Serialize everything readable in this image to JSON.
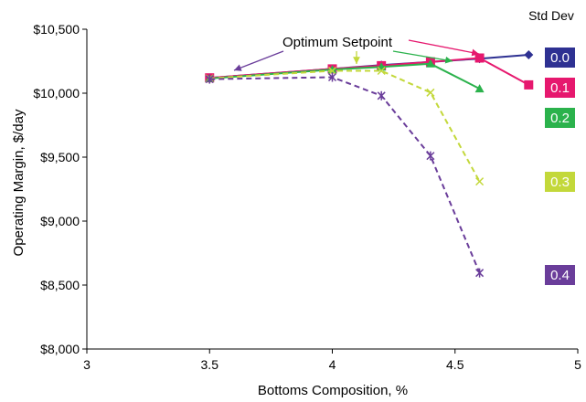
{
  "chart_data": {
    "type": "line",
    "xlabel": "Bottoms Composition, %",
    "ylabel": "Operating Margin, $/day",
    "xlim": [
      3,
      5
    ],
    "ylim": [
      8000,
      10500
    ],
    "x_ticks": [
      "3",
      "3.5",
      "4",
      "4.5",
      "5"
    ],
    "y_ticks": [
      "$8,000",
      "$8,500",
      "$9,000",
      "$9,500",
      "$10,000",
      "$10,500"
    ],
    "grid": false,
    "legend_title": "Std Dev",
    "legend_placement": "right",
    "annotation": "Optimum Setpoint",
    "series": [
      {
        "name": "0.0",
        "color": "#2e3192",
        "marker": "diamond",
        "dash": false,
        "x": [
          3.5,
          4.0,
          4.2,
          4.4,
          4.6,
          4.8
        ],
        "y": [
          10120,
          10190,
          10220,
          10245,
          10270,
          10300
        ]
      },
      {
        "name": "0.1",
        "color": "#e6186e",
        "marker": "square",
        "dash": false,
        "x": [
          3.5,
          4.0,
          4.2,
          4.4,
          4.6,
          4.8
        ],
        "y": [
          10120,
          10190,
          10215,
          10245,
          10275,
          10065
        ]
      },
      {
        "name": "0.2",
        "color": "#2bb24c",
        "marker": "triangle",
        "dash": false,
        "x": [
          3.5,
          4.0,
          4.2,
          4.4,
          4.6
        ],
        "y": [
          10115,
          10185,
          10205,
          10230,
          10035
        ]
      },
      {
        "name": "0.3",
        "color": "#c3d83a",
        "marker": "x",
        "dash": true,
        "x": [
          3.5,
          4.0,
          4.2,
          4.4,
          4.6
        ],
        "y": [
          10115,
          10175,
          10175,
          10005,
          9310
        ]
      },
      {
        "name": "0.4",
        "color": "#6a3d9a",
        "marker": "star",
        "dash": true,
        "x": [
          3.5,
          4.0,
          4.2,
          4.4,
          4.6
        ],
        "y": [
          10110,
          10125,
          9980,
          9510,
          8595
        ]
      }
    ]
  }
}
